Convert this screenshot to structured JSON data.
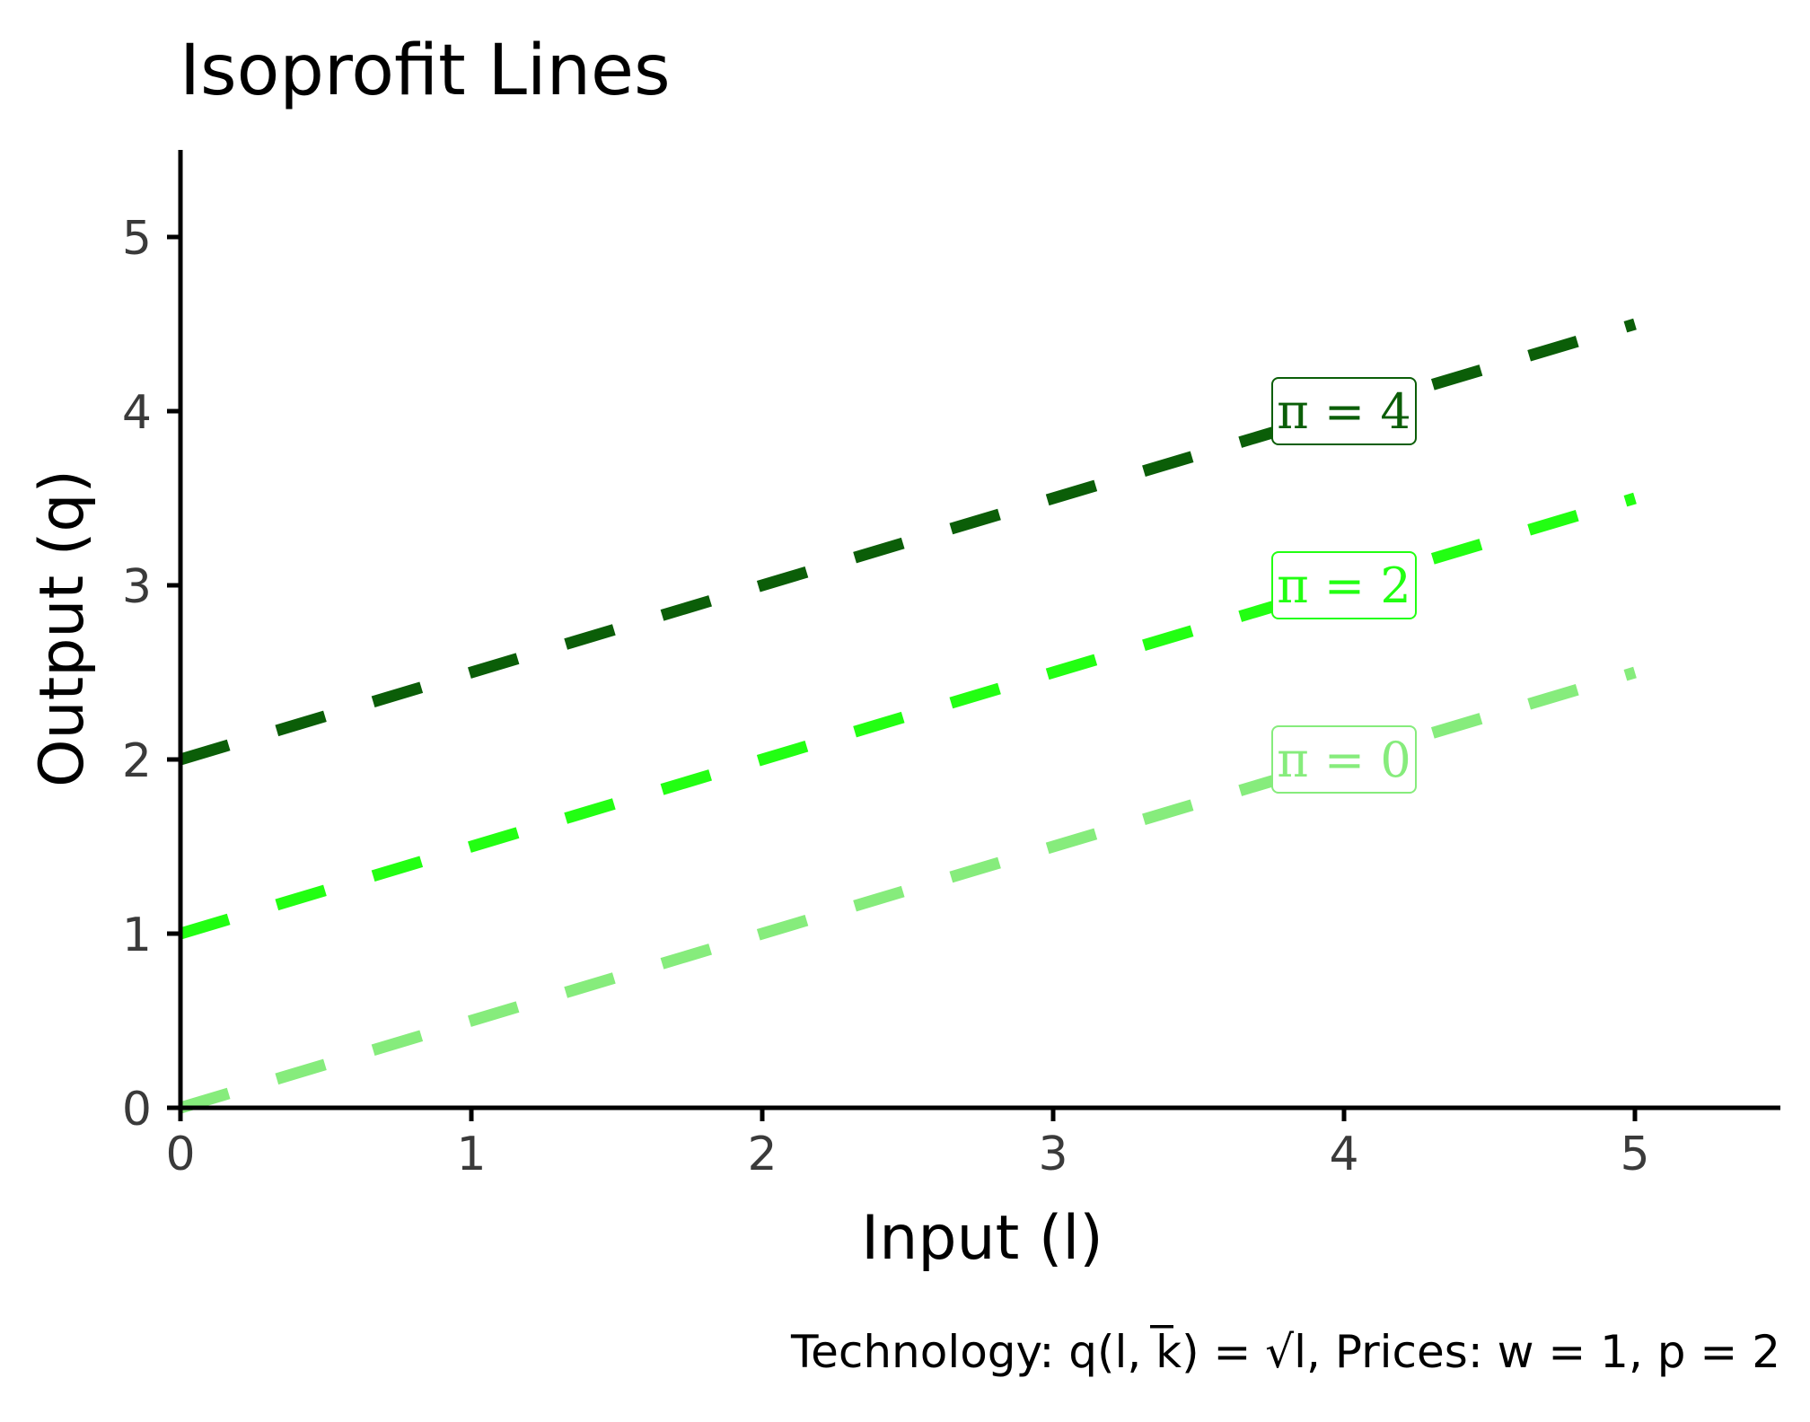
{
  "chart_data": {
    "type": "line",
    "title": "Isoprofit Lines",
    "xlabel": "Input (l)",
    "ylabel": "Output (q)",
    "caption": "Technology: q(l, k̅) = √l, Prices: w = 1, p = 2",
    "xlim": [
      0,
      5.5
    ],
    "ylim": [
      0,
      5.5
    ],
    "xticks": [
      0,
      1,
      2,
      3,
      4,
      5
    ],
    "yticks": [
      0,
      1,
      2,
      3,
      4,
      5
    ],
    "grid": false,
    "legend": "none",
    "series": [
      {
        "label": "π = 0",
        "x": [
          0,
          5
        ],
        "y": [
          0,
          2.5
        ],
        "color": "#86ec7c",
        "label_at": [
          4,
          2
        ]
      },
      {
        "label": "π = 2",
        "x": [
          0,
          5
        ],
        "y": [
          1,
          3.5
        ],
        "color": "#22ff12",
        "label_at": [
          4,
          3
        ]
      },
      {
        "label": "π = 4",
        "x": [
          0,
          5
        ],
        "y": [
          2,
          4.5
        ],
        "color": "#0b5e08",
        "label_at": [
          4,
          4
        ]
      }
    ]
  }
}
